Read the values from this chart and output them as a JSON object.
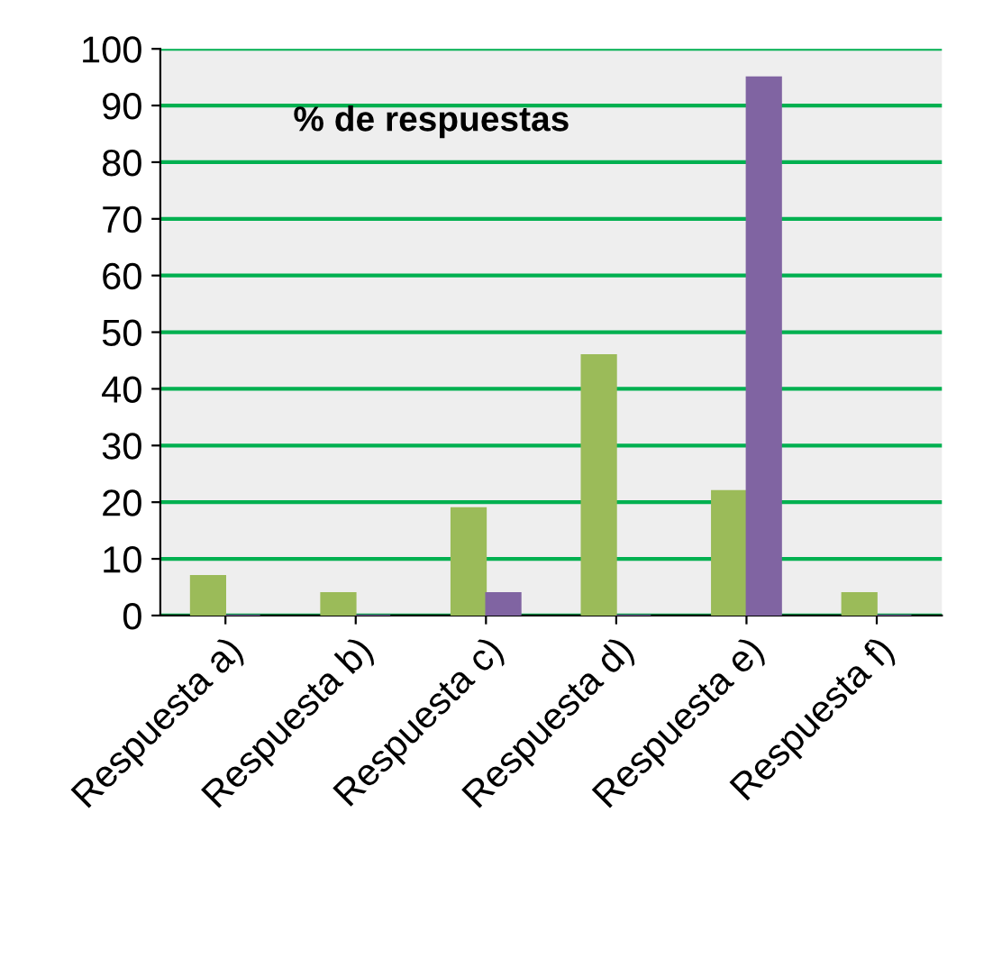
{
  "chart_data": {
    "type": "bar",
    "categories": [
      "Respuesta a)",
      "Respuesta b)",
      "Respuesta c)",
      "Respuesta d)",
      "Respuesta e)",
      "Respuesta f)"
    ],
    "series": [
      {
        "color": "#9bbb59",
        "values": [
          7,
          4,
          19,
          46,
          22,
          4
        ]
      },
      {
        "color": "#8064a2",
        "values": [
          0,
          0,
          4,
          0,
          95,
          0
        ]
      }
    ],
    "ylim": [
      0,
      100
    ],
    "yticks": [
      0,
      10,
      20,
      30,
      40,
      50,
      60,
      70,
      80,
      90,
      100
    ],
    "grid": "y",
    "annotations": [
      "% de respuestas"
    ]
  }
}
